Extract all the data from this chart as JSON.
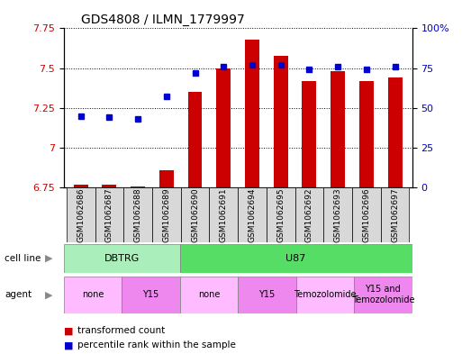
{
  "title": "GDS4808 / ILMN_1779997",
  "samples": [
    "GSM1062686",
    "GSM1062687",
    "GSM1062688",
    "GSM1062689",
    "GSM1062690",
    "GSM1062691",
    "GSM1062694",
    "GSM1062695",
    "GSM1062692",
    "GSM1062693",
    "GSM1062696",
    "GSM1062697"
  ],
  "transformed_count": [
    6.77,
    6.77,
    6.76,
    6.86,
    7.35,
    7.5,
    7.68,
    7.58,
    7.42,
    7.48,
    7.42,
    7.44
  ],
  "percentile_rank": [
    45,
    44,
    43,
    57,
    72,
    76,
    77,
    77,
    74,
    76,
    74,
    76
  ],
  "ylim_left": [
    6.75,
    7.75
  ],
  "ylim_right": [
    0,
    100
  ],
  "yticks_left": [
    6.75,
    7.0,
    7.25,
    7.5,
    7.75
  ],
  "yticks_right": [
    0,
    25,
    50,
    75,
    100
  ],
  "ytick_labels_left": [
    "6.75",
    "7",
    "7.25",
    "7.5",
    "7.75"
  ],
  "ytick_labels_right": [
    "0",
    "25",
    "50",
    "75",
    "100%"
  ],
  "bar_color": "#cc0000",
  "dot_color": "#0000cc",
  "cell_line_groups": [
    {
      "label": "DBTRG",
      "start": 0,
      "end": 3,
      "color": "#aaeebb"
    },
    {
      "label": "U87",
      "start": 4,
      "end": 11,
      "color": "#55dd66"
    }
  ],
  "agent_groups": [
    {
      "label": "none",
      "start": 0,
      "end": 1,
      "color": "#ffbbff"
    },
    {
      "label": "Y15",
      "start": 2,
      "end": 3,
      "color": "#ee88ee"
    },
    {
      "label": "none",
      "start": 4,
      "end": 5,
      "color": "#ffbbff"
    },
    {
      "label": "Y15",
      "start": 6,
      "end": 7,
      "color": "#ee88ee"
    },
    {
      "label": "Temozolomide",
      "start": 8,
      "end": 9,
      "color": "#ffbbff"
    },
    {
      "label": "Y15 and\nTemozolomide",
      "start": 10,
      "end": 11,
      "color": "#ee88ee"
    }
  ],
  "legend_items": [
    {
      "label": "transformed count",
      "color": "#cc0000"
    },
    {
      "label": "percentile rank within the sample",
      "color": "#0000cc"
    }
  ],
  "sample_box_color": "#d8d8d8",
  "bar_width": 0.5
}
